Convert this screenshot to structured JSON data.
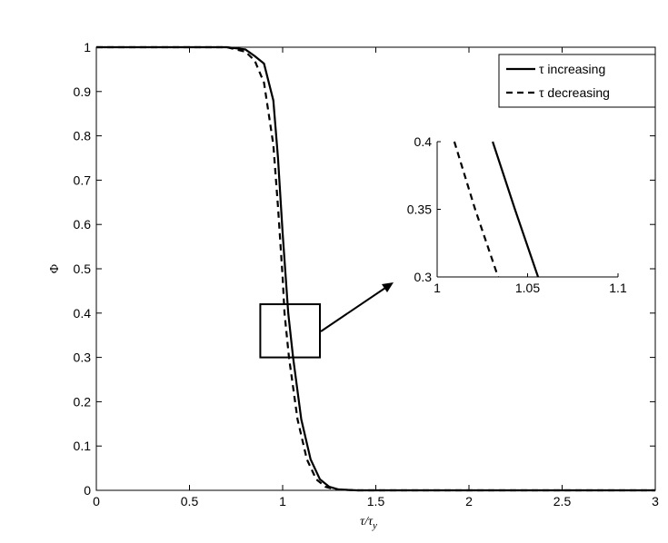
{
  "chart_data": [
    {
      "type": "line",
      "x_label": {
        "main": "τ/τ",
        "sub": "y"
      },
      "y_label": "Φ",
      "xlim": [
        0,
        3
      ],
      "ylim": [
        0,
        1
      ],
      "xticks": [
        0,
        0.5,
        1,
        1.5,
        2,
        2.5,
        3
      ],
      "yticks": [
        0,
        0.1,
        0.2,
        0.3,
        0.4,
        0.5,
        0.6,
        0.7,
        0.8,
        0.9,
        1
      ],
      "box": true,
      "legend": "upper right",
      "zoom_box": {
        "x": [
          0.88,
          1.2
        ],
        "y": [
          0.3,
          0.42
        ]
      },
      "series": [
        {
          "name": "τ increasing",
          "color": "#000000",
          "style": "solid",
          "x": [
            0,
            0.5,
            0.7,
            0.8,
            0.85,
            0.9,
            0.95,
            0.975,
            1.0,
            1.03,
            1.056,
            1.1,
            1.15,
            1.2,
            1.25,
            1.3,
            1.4,
            2,
            3
          ],
          "values": [
            1,
            1,
            1,
            0.995,
            0.98,
            0.963,
            0.88,
            0.75,
            0.58,
            0.4,
            0.3,
            0.16,
            0.07,
            0.025,
            0.008,
            0.002,
            0,
            0,
            0
          ]
        },
        {
          "name": "τ decreasing",
          "color": "#000000",
          "style": "dashed",
          "x": [
            0,
            0.5,
            0.7,
            0.8,
            0.85,
            0.9,
            0.95,
            0.975,
            1.0,
            1.01,
            1.034,
            1.08,
            1.13,
            1.18,
            1.23,
            1.28,
            1.4,
            2,
            3
          ],
          "values": [
            1,
            1,
            1,
            0.99,
            0.97,
            0.92,
            0.78,
            0.64,
            0.48,
            0.4,
            0.3,
            0.16,
            0.07,
            0.025,
            0.008,
            0.002,
            0,
            0,
            0
          ]
        }
      ]
    },
    {
      "type": "line",
      "xlim": [
        1,
        1.1
      ],
      "ylim": [
        0.3,
        0.4
      ],
      "xticks": [
        1,
        1.05,
        1.1
      ],
      "yticks": [
        0.3,
        0.35,
        0.4
      ],
      "box": false,
      "series": [
        {
          "color": "#000000",
          "style": "solid",
          "x": [
            1.0307,
            1.043,
            1.0558
          ],
          "values": [
            0.4,
            0.35,
            0.3
          ]
        },
        {
          "color": "#000000",
          "style": "dashed",
          "x": [
            1.0095,
            1.021,
            1.0337
          ],
          "values": [
            0.4,
            0.35,
            0.3
          ]
        }
      ]
    }
  ]
}
